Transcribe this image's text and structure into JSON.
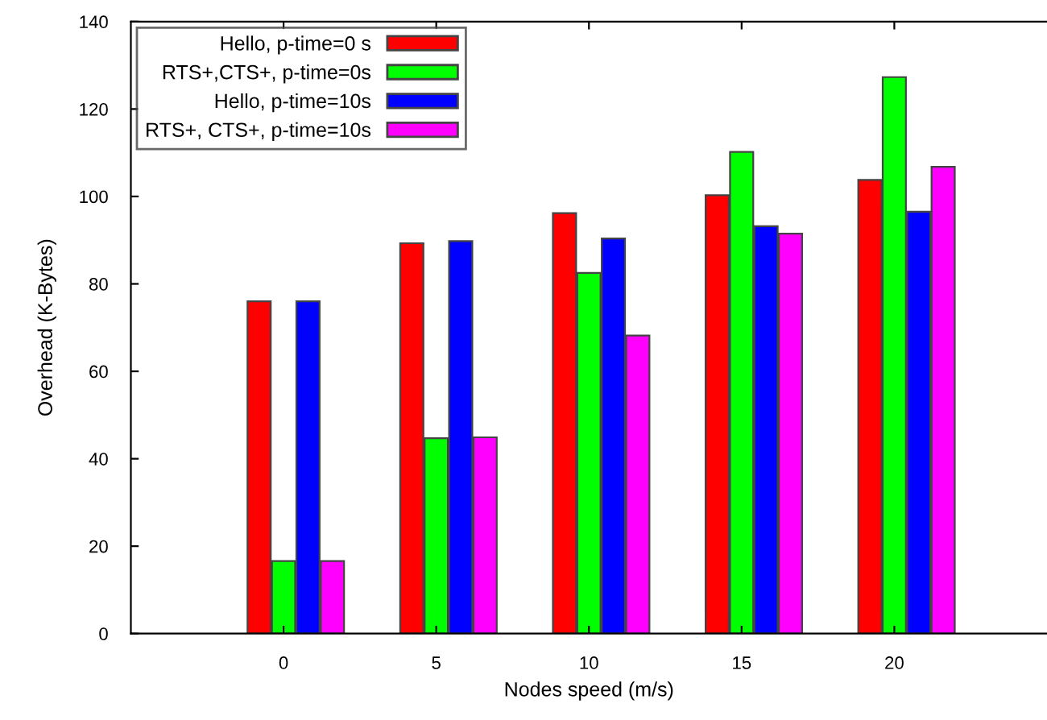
{
  "chart_data": {
    "type": "bar",
    "xlabel": "Nodes speed (m/s)",
    "ylabel": "Overhead (K-Bytes)",
    "x": [
      0,
      5,
      10,
      15,
      20
    ],
    "xlim": [
      -5,
      25
    ],
    "xticks": [
      0,
      5,
      10,
      15,
      20
    ],
    "ylim": [
      0,
      140
    ],
    "yticks": [
      0,
      20,
      40,
      60,
      80,
      100,
      120,
      140
    ],
    "grid": false,
    "legend": "top left",
    "series": [
      {
        "name": "Hello, p-time=0 s",
        "color": "#ff0000",
        "values": [
          76,
          89.3,
          96.2,
          100.3,
          103.8
        ]
      },
      {
        "name": "RTS+,CTS+, p-time=0s",
        "color": "#00ff00",
        "values": [
          16.6,
          44.7,
          82.5,
          110.2,
          127.3
        ]
      },
      {
        "name": "Hello, p-time=10s",
        "color": "#0000ff",
        "values": [
          76,
          89.8,
          90.4,
          93.2,
          96.5
        ]
      },
      {
        "name": "RTS+, CTS+, p-time=10s",
        "color": "#ff00ff",
        "values": [
          16.6,
          44.9,
          68.2,
          91.5,
          106.8
        ]
      }
    ]
  }
}
